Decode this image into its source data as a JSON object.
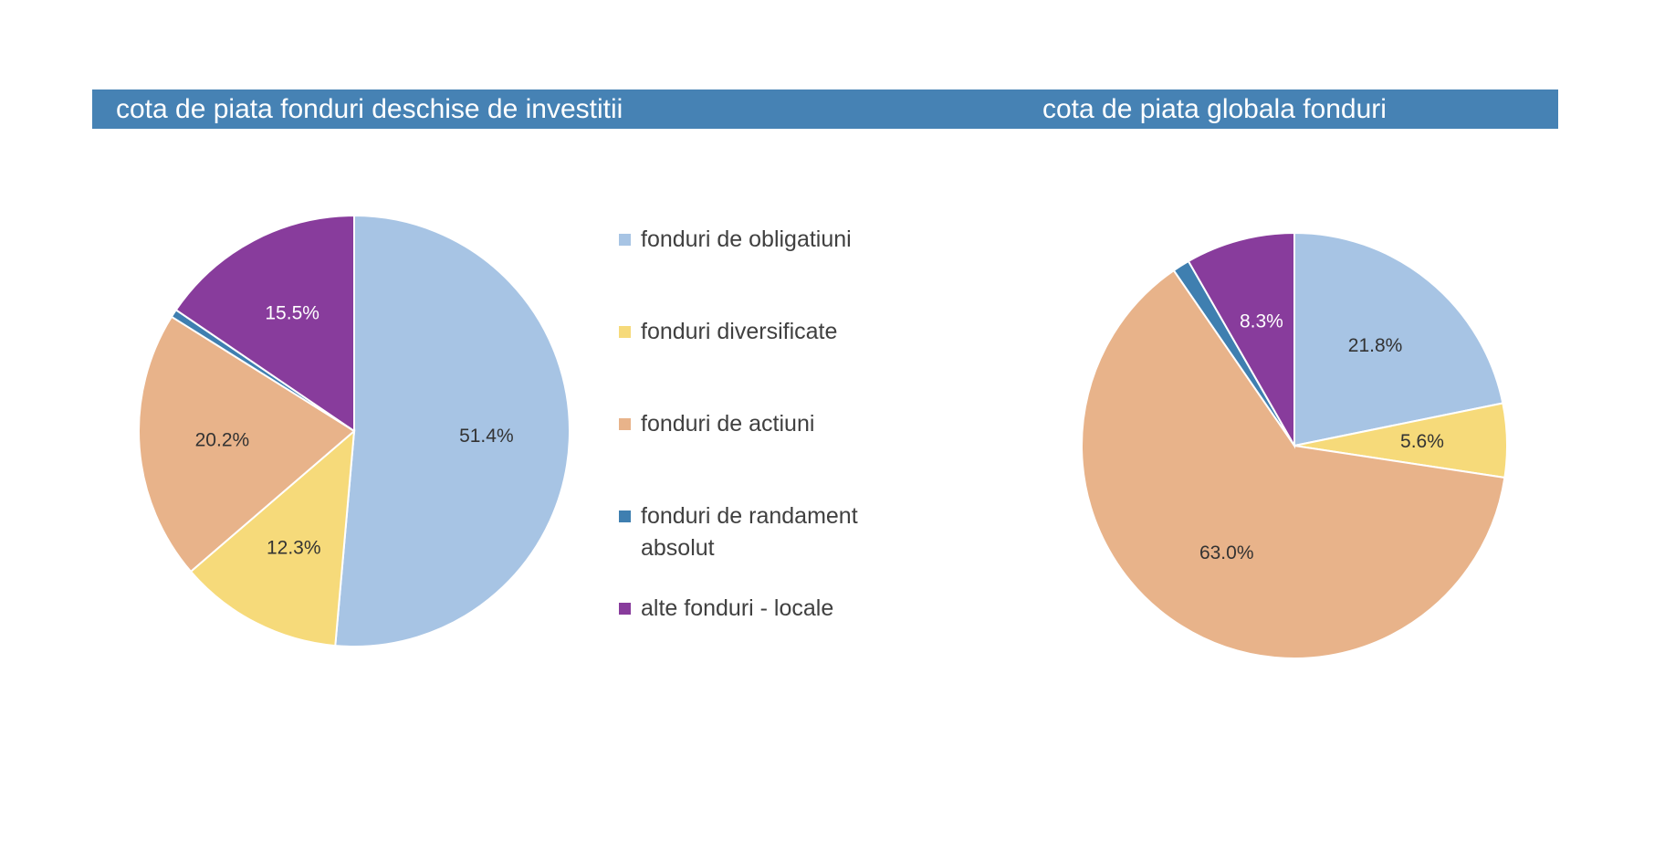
{
  "colors": {
    "title_bar": "#4682b4",
    "fonduri_de_obligatiuni": "#a7c4e4",
    "fonduri_diversificate": "#f6da7a",
    "fonduri_de_actiuni": "#e8b38a",
    "fonduri_de_randament_absolut": "#3f7fb0",
    "alte_fonduri_locale": "#883c9c"
  },
  "legend": {
    "items": [
      {
        "label": "fonduri de obligatiuni",
        "color": "#a7c4e4"
      },
      {
        "label": "fonduri diversificate",
        "color": "#f6da7a"
      },
      {
        "label": "fonduri de actiuni",
        "color": "#e8b38a"
      },
      {
        "label": "fonduri de randament absolut",
        "color": "#3f7fb0"
      },
      {
        "label": "alte fonduri - locale",
        "color": "#883c9c"
      }
    ]
  },
  "chart_data": [
    {
      "type": "pie",
      "title": "cota de piata fonduri deschise de investitii",
      "categories": [
        "fonduri de obligatiuni",
        "fonduri diversificate",
        "fonduri de actiuni",
        "fonduri de randament absolut",
        "alte fonduri - locale"
      ],
      "values": [
        51.4,
        12.3,
        20.2,
        0.6,
        15.5
      ],
      "labels": [
        "51.4%",
        "12.3%",
        "20.2%",
        "",
        "15.5%"
      ],
      "colors": [
        "#a7c4e4",
        "#f6da7a",
        "#e8b38a",
        "#3f7fb0",
        "#883c9c"
      ],
      "label_colors": [
        "#333333",
        "#333333",
        "#333333",
        "#333333",
        "#ffffff"
      ],
      "legend": "right"
    },
    {
      "type": "pie",
      "title": "cota de piata globala fonduri",
      "categories": [
        "fonduri de obligatiuni",
        "fonduri diversificate",
        "fonduri de actiuni",
        "fonduri de randament absolut",
        "alte fonduri - locale"
      ],
      "values": [
        21.8,
        5.6,
        63.0,
        1.3,
        8.3
      ],
      "labels": [
        "21.8%",
        "5.6%",
        "63.0%",
        "",
        "8.3%"
      ],
      "colors": [
        "#a7c4e4",
        "#f6da7a",
        "#e8b38a",
        "#3f7fb0",
        "#883c9c"
      ],
      "label_colors": [
        "#333333",
        "#333333",
        "#333333",
        "#333333",
        "#ffffff"
      ]
    }
  ]
}
